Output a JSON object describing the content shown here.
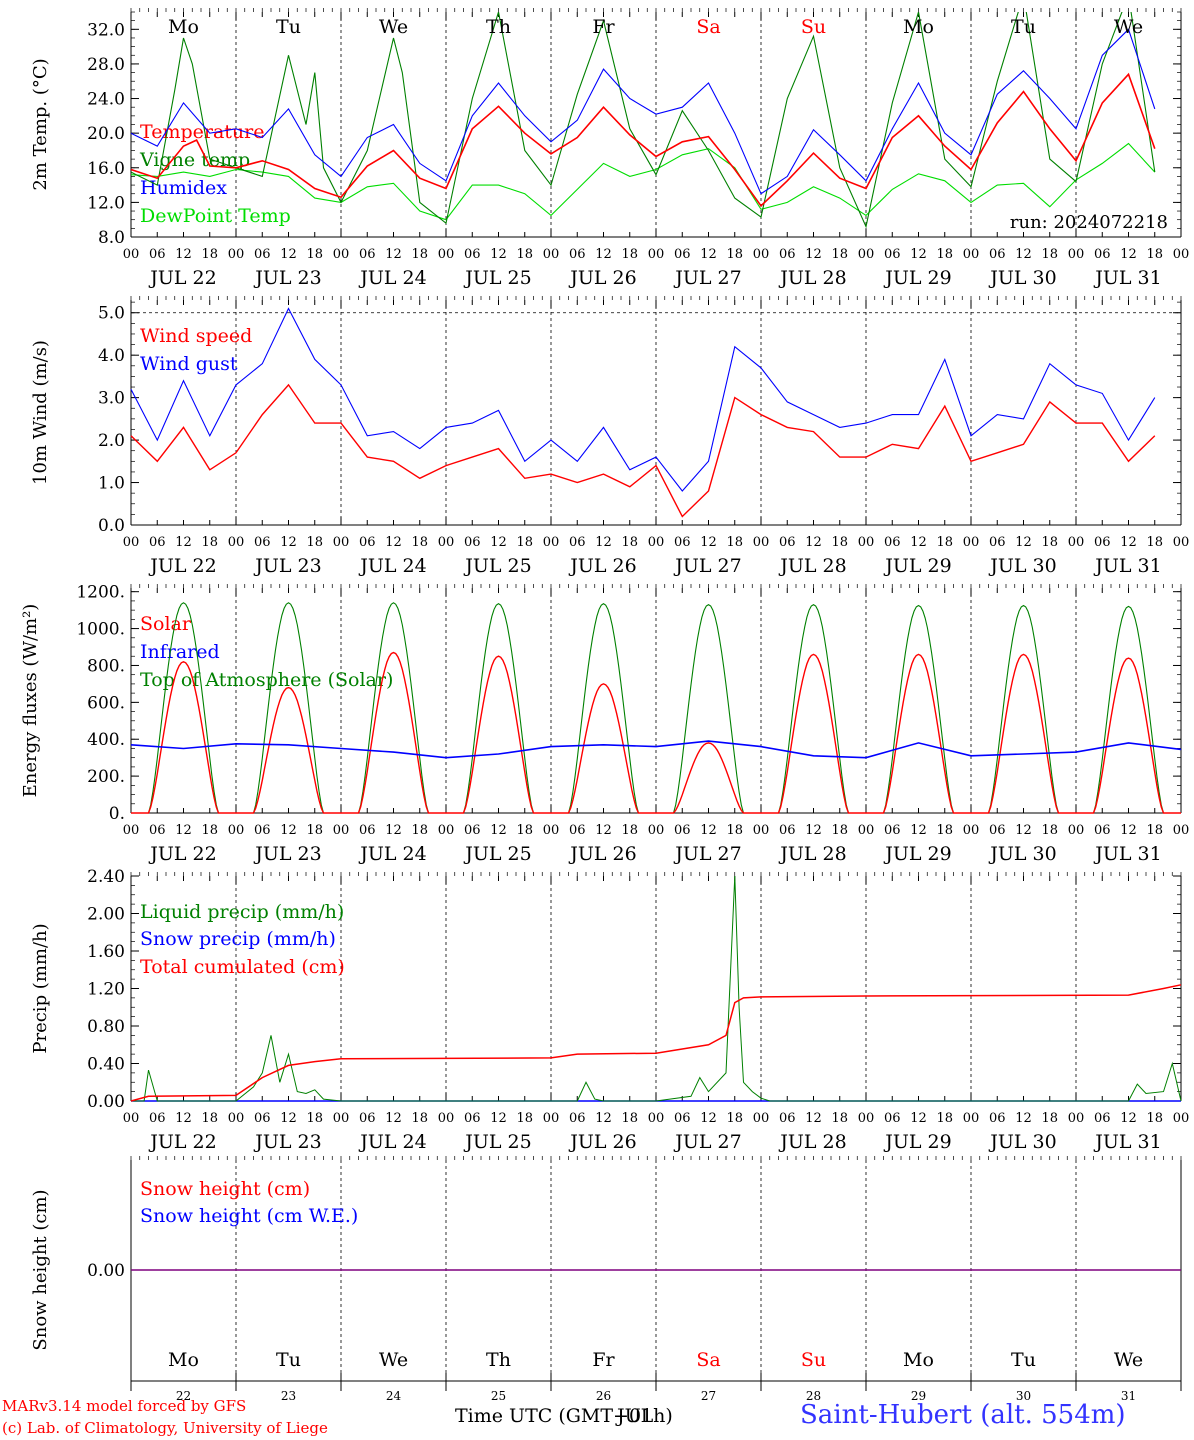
{
  "colors": {
    "temperature": "#ff0000",
    "vigne": "#008000",
    "humidex": "#0000ff",
    "dewpoint": "#00dd00",
    "weekday": "#000000",
    "weekend": "#ff0000",
    "snow_line": "#7f007f",
    "station": "#3333ff"
  },
  "days": {
    "names": [
      "Mo",
      "Tu",
      "We",
      "Th",
      "Fr",
      "Sa",
      "Su",
      "Mo",
      "Tu",
      "We"
    ],
    "weekend_flags": [
      false,
      false,
      false,
      false,
      false,
      true,
      true,
      false,
      false,
      false
    ],
    "dates": [
      "JUL 22",
      "JUL 23",
      "JUL 24",
      "JUL 25",
      "JUL 26",
      "JUL 27",
      "JUL 28",
      "JUL 29",
      "JUL 30",
      "JUL 31"
    ],
    "numbers": [
      "22",
      "23",
      "24",
      "25",
      "26",
      "27",
      "28",
      "29",
      "30",
      "31"
    ],
    "hour_ticks": [
      "00",
      "06",
      "12",
      "18"
    ],
    "final_hour": "00"
  },
  "chart_data": [
    {
      "type": "line",
      "ylabel": "2m Temp. (°C)",
      "ylim": [
        8,
        34
      ],
      "yticks": [
        "8.0",
        "12.0",
        "16.0",
        "20.0",
        "24.0",
        "28.0",
        "32.0"
      ],
      "annotation": "run: 2024072218",
      "x_units": "hours since JUL 22 00 UTC",
      "series": [
        {
          "name": "Temperature",
          "color": "#ff0000",
          "x": [
            0,
            6,
            12,
            15,
            18,
            24,
            30,
            36,
            42,
            48,
            54,
            60,
            66,
            72,
            78,
            84,
            90,
            96,
            102,
            108,
            114,
            120,
            126,
            132,
            138,
            144,
            150,
            156,
            162,
            168,
            174,
            180,
            186,
            192,
            198,
            204,
            210,
            216,
            222,
            228,
            234
          ],
          "y": [
            15.8,
            14.8,
            18.5,
            19.2,
            16.2,
            16,
            16.8,
            15.8,
            13.6,
            12.6,
            16.2,
            18,
            14.8,
            13.6,
            20.5,
            23.1,
            20,
            17.6,
            19.5,
            23,
            19.8,
            17.3,
            19,
            19.6,
            15.8,
            11.6,
            14.5,
            17.7,
            14.8,
            13.6,
            19.5,
            22,
            18.5,
            15.8,
            21.2,
            24.8,
            20.5,
            16.8,
            23.5,
            26.8,
            18.2
          ]
        },
        {
          "name": "Vigne temp",
          "color": "#008000",
          "x": [
            0,
            6,
            10,
            12,
            14,
            18,
            24,
            30,
            36,
            40,
            42,
            44,
            48,
            54,
            60,
            62,
            66,
            72,
            78,
            84,
            90,
            96,
            102,
            108,
            114,
            120,
            126,
            132,
            138,
            144,
            150,
            156,
            162,
            168,
            174,
            180,
            186,
            192,
            198,
            204,
            210,
            216,
            222,
            228,
            234
          ],
          "y": [
            15.5,
            14,
            25,
            31,
            28,
            17,
            16,
            15,
            29,
            21,
            27,
            16,
            12,
            18,
            31,
            27,
            12,
            9.6,
            24,
            34,
            18,
            14,
            24.5,
            33,
            20.5,
            15.2,
            22.6,
            18,
            12.5,
            10.3,
            24,
            31.2,
            16,
            9.2,
            23.5,
            34,
            17,
            13.8,
            26,
            36,
            17,
            14.4,
            28,
            36,
            15.5
          ]
        },
        {
          "name": "Humidex",
          "color": "#0000ff",
          "x": [
            0,
            6,
            12,
            18,
            24,
            30,
            36,
            42,
            48,
            54,
            60,
            66,
            72,
            78,
            84,
            90,
            96,
            102,
            108,
            114,
            120,
            126,
            132,
            138,
            144,
            150,
            156,
            162,
            168,
            174,
            180,
            186,
            192,
            198,
            204,
            210,
            216,
            222,
            228,
            234
          ],
          "y": [
            20,
            18.5,
            23.5,
            20,
            20.5,
            19.5,
            22.8,
            17.5,
            15,
            19.5,
            21,
            16.5,
            14.5,
            22,
            25.8,
            22,
            19,
            21.5,
            27.4,
            24,
            22.2,
            23,
            25.8,
            20,
            13,
            15,
            20.4,
            17.5,
            14.5,
            20.5,
            25.8,
            20,
            17.5,
            24.5,
            27.2,
            24,
            20.5,
            29,
            32,
            22.8
          ]
        },
        {
          "name": "DewPoint Temp",
          "color": "#00dd00",
          "x": [
            0,
            6,
            12,
            18,
            24,
            30,
            36,
            42,
            48,
            54,
            60,
            66,
            72,
            78,
            84,
            90,
            96,
            102,
            108,
            114,
            120,
            126,
            132,
            138,
            144,
            150,
            156,
            162,
            168,
            174,
            180,
            186,
            192,
            198,
            204,
            210,
            216,
            222,
            228,
            234
          ],
          "y": [
            15.2,
            15,
            15.5,
            15,
            15.8,
            15.5,
            15,
            12.5,
            12,
            13.8,
            14.2,
            11,
            10,
            14,
            14,
            13,
            10.5,
            13.5,
            16.5,
            15,
            15.8,
            17.5,
            18.2,
            16,
            11.2,
            12,
            13.8,
            12.5,
            10.5,
            13.5,
            15.3,
            14.5,
            12,
            14,
            14.2,
            11.5,
            14.6,
            16.5,
            18.8,
            15.5
          ]
        }
      ]
    },
    {
      "type": "line",
      "ylabel": "10m Wind (m/s)",
      "ylim": [
        0,
        5.3
      ],
      "yticks": [
        "0.0",
        "1.0",
        "2.0",
        "3.0",
        "4.0",
        "5.0"
      ],
      "x_units": "hours since JUL 22 00 UTC",
      "series": [
        {
          "name": "Wind speed",
          "color": "#ff0000",
          "x": [
            0,
            6,
            12,
            18,
            24,
            30,
            36,
            42,
            48,
            54,
            60,
            66,
            72,
            78,
            84,
            90,
            96,
            102,
            108,
            114,
            120,
            126,
            132,
            138,
            144,
            150,
            156,
            162,
            168,
            174,
            180,
            186,
            192,
            198,
            204,
            210,
            216,
            222,
            228,
            234
          ],
          "y": [
            2.1,
            1.5,
            2.3,
            1.3,
            1.7,
            2.6,
            3.3,
            2.4,
            2.4,
            1.6,
            1.5,
            1.1,
            1.4,
            1.6,
            1.8,
            1.1,
            1.2,
            1.0,
            1.2,
            0.9,
            1.4,
            0.2,
            0.8,
            3.0,
            2.6,
            2.3,
            2.2,
            1.6,
            1.6,
            1.9,
            1.8,
            2.8,
            1.5,
            1.7,
            1.9,
            2.9,
            2.4,
            2.4,
            1.5,
            2.1
          ]
        },
        {
          "name": "Wind gust",
          "color": "#0000ff",
          "x": [
            0,
            6,
            12,
            18,
            24,
            30,
            36,
            42,
            48,
            54,
            60,
            66,
            72,
            78,
            84,
            90,
            96,
            102,
            108,
            114,
            120,
            126,
            132,
            138,
            144,
            150,
            156,
            162,
            168,
            174,
            180,
            186,
            192,
            198,
            204,
            210,
            216,
            222,
            228,
            234
          ],
          "y": [
            3.2,
            2.0,
            3.4,
            2.1,
            3.3,
            3.8,
            5.1,
            3.9,
            3.3,
            2.1,
            2.2,
            1.8,
            2.3,
            2.4,
            2.7,
            1.5,
            2.0,
            1.5,
            2.3,
            1.3,
            1.6,
            0.8,
            1.5,
            4.2,
            3.7,
            2.9,
            2.6,
            2.3,
            2.4,
            2.6,
            2.6,
            3.9,
            2.1,
            2.6,
            2.5,
            3.8,
            3.3,
            3.1,
            2.0,
            3.0
          ]
        }
      ]
    },
    {
      "type": "line",
      "ylabel": "Energy fluxes (W/m²)",
      "ylim": [
        0,
        1220
      ],
      "yticks": [
        "0.",
        "200.",
        "400.",
        "600.",
        "800.",
        "1000.",
        "1200."
      ],
      "x_units": "hours since JUL 22 00 UTC",
      "series": [
        {
          "name": "Solar",
          "color": "#ff0000",
          "daily_peak": [
            820,
            680,
            870,
            850,
            700,
            380,
            860,
            860,
            860,
            840
          ]
        },
        {
          "name": "Infrared",
          "color": "#0000ff",
          "x": [
            0,
            12,
            24,
            36,
            48,
            60,
            72,
            84,
            96,
            108,
            120,
            132,
            144,
            156,
            168,
            180,
            192,
            204,
            216,
            228,
            240
          ],
          "y": [
            370,
            350,
            375,
            370,
            350,
            330,
            300,
            320,
            360,
            370,
            360,
            390,
            360,
            310,
            300,
            380,
            310,
            320,
            330,
            380,
            345
          ]
        },
        {
          "name": "Top of Atmosphere (Solar)",
          "color": "#008000",
          "daily_peak": [
            1140,
            1140,
            1140,
            1135,
            1135,
            1130,
            1130,
            1125,
            1125,
            1120
          ]
        }
      ]
    },
    {
      "type": "line",
      "ylabel": "Precip (mm/h)",
      "ylim": [
        0,
        2.4
      ],
      "yticks": [
        "0.00",
        "0.40",
        "0.80",
        "1.20",
        "1.60",
        "2.00",
        "2.40"
      ],
      "x_units": "hours since JUL 22 00 UTC",
      "series": [
        {
          "name": "Liquid precip (mm/h)",
          "color": "#008000",
          "x": [
            0,
            3,
            4,
            6,
            24,
            28,
            30,
            32,
            34,
            36,
            38,
            40,
            42,
            44,
            48,
            102,
            104,
            106,
            108,
            120,
            128,
            130,
            132,
            136,
            138,
            139,
            140,
            142,
            144,
            146,
            228,
            230,
            232,
            236,
            238,
            240
          ],
          "y": [
            0,
            0,
            0.33,
            0,
            0,
            0.15,
            0.3,
            0.7,
            0.2,
            0.5,
            0.1,
            0.08,
            0.12,
            0.02,
            0,
            0,
            0.2,
            0.02,
            0,
            0,
            0.05,
            0.25,
            0.1,
            0.3,
            2.4,
            1.0,
            0.2,
            0.1,
            0.03,
            0,
            0,
            0.18,
            0.08,
            0.1,
            0.4,
            0
          ]
        },
        {
          "name": "Snow precip (mm/h)",
          "color": "#0000ff",
          "x": [
            0,
            240
          ],
          "y": [
            0,
            0
          ]
        },
        {
          "name": "Total cumulated (cm)",
          "color": "#ff0000",
          "x": [
            0,
            4,
            24,
            30,
            36,
            42,
            48,
            96,
            102,
            120,
            132,
            136,
            138,
            140,
            144,
            168,
            228,
            236,
            240
          ],
          "y": [
            0,
            0.05,
            0.06,
            0.25,
            0.38,
            0.42,
            0.45,
            0.46,
            0.5,
            0.51,
            0.6,
            0.7,
            1.05,
            1.1,
            1.11,
            1.12,
            1.13,
            1.2,
            1.24
          ]
        }
      ]
    },
    {
      "type": "line",
      "ylabel": "Snow height (cm)",
      "yticks": [
        "0.00"
      ],
      "x_units": "hours since JUL 22 00 UTC",
      "series": [
        {
          "name": "Snow height (cm)",
          "color": "#ff0000",
          "x": [
            0,
            240
          ],
          "y": [
            0,
            0
          ]
        },
        {
          "name": "Snow height (cm W.E.)",
          "color": "#0000ff",
          "x": [
            0,
            240
          ],
          "y": [
            0,
            0
          ]
        }
      ]
    }
  ],
  "footer": {
    "model": "MARv3.14 model forced by GFS",
    "credit": "(c) Lab. of Climatology, University of Liege",
    "time_axis": "Time UTC (GMT+01h)",
    "overlap_text": "JUL",
    "station": "Saint-Hubert (alt. 554m)"
  }
}
